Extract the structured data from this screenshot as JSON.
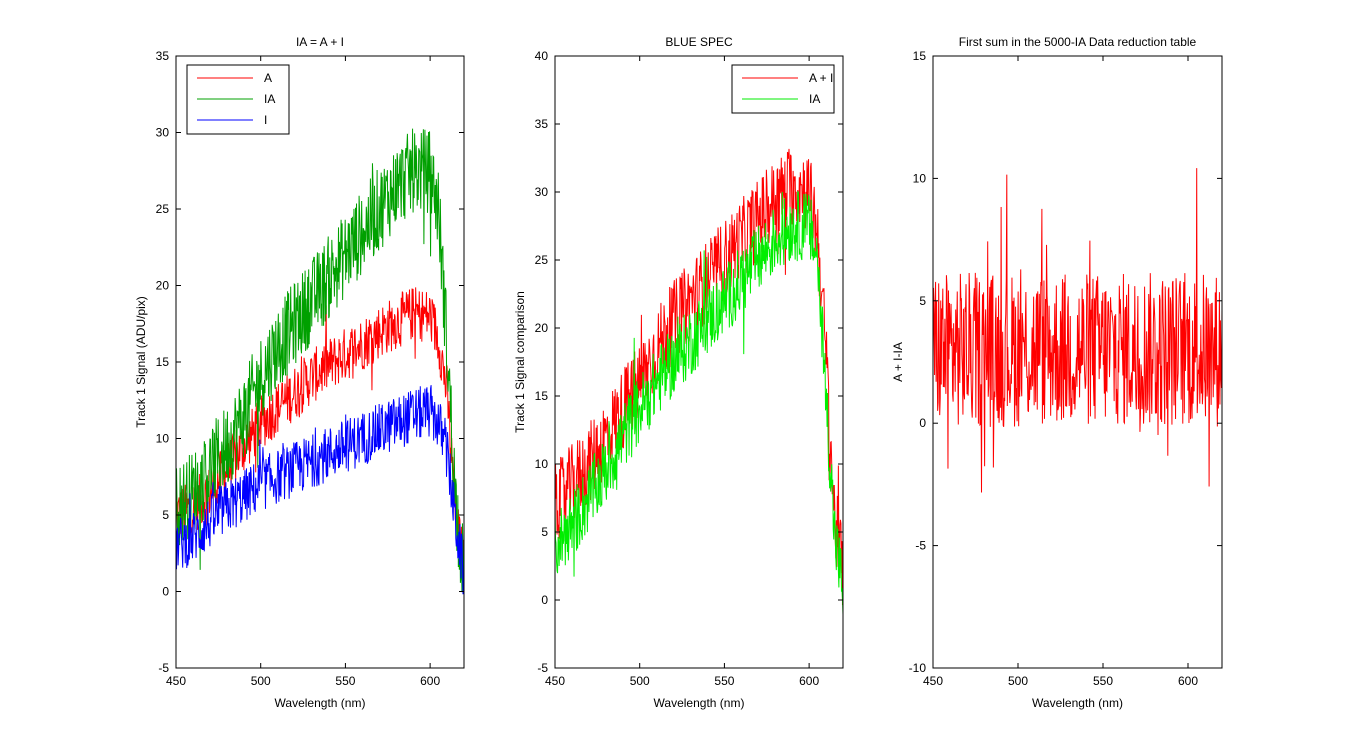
{
  "chart_data": [
    {
      "type": "line",
      "title": "IA = A + I",
      "xlabel": "Wavelength (nm)",
      "ylabel": "Track 1 Signal (ADU/pix)",
      "xlim": [
        450,
        620
      ],
      "ylim": [
        -5,
        35
      ],
      "xticks": [
        450,
        500,
        550,
        600
      ],
      "yticks": [
        -5,
        0,
        5,
        10,
        15,
        20,
        25,
        30,
        35
      ],
      "legend_position": "top-left",
      "noise_amplitude": [
        1.8,
        2.8,
        1.8
      ],
      "series": [
        {
          "name": "A",
          "color": "#ff0000",
          "x": [
            450,
            460,
            470,
            480,
            490,
            500,
            510,
            520,
            530,
            540,
            550,
            560,
            570,
            580,
            590,
            600,
            605,
            610,
            615,
            620
          ],
          "y": [
            5.0,
            5.5,
            6.5,
            8.0,
            9.5,
            11.0,
            12.0,
            13.0,
            14.0,
            14.8,
            15.5,
            16.2,
            17.0,
            17.6,
            18.2,
            18.0,
            16.5,
            13.0,
            5.0,
            1.5
          ]
        },
        {
          "name": "IA",
          "color": "#00a000",
          "x": [
            450,
            460,
            470,
            480,
            490,
            500,
            510,
            520,
            530,
            540,
            550,
            560,
            570,
            580,
            590,
            600,
            605,
            610,
            615,
            620
          ],
          "y": [
            5.5,
            6.5,
            8.0,
            9.5,
            11.5,
            14.0,
            16.0,
            17.5,
            19.0,
            20.5,
            22.0,
            23.5,
            25.0,
            26.5,
            27.5,
            27.5,
            25.0,
            16.0,
            6.0,
            1.0
          ]
        },
        {
          "name": "I",
          "color": "#0000ff",
          "x": [
            450,
            460,
            470,
            480,
            490,
            500,
            510,
            520,
            530,
            540,
            550,
            560,
            570,
            580,
            590,
            600,
            605,
            610,
            615,
            620
          ],
          "y": [
            3.0,
            3.5,
            4.5,
            5.5,
            6.2,
            7.0,
            7.5,
            8.0,
            8.5,
            9.0,
            9.5,
            10.0,
            10.5,
            11.0,
            11.5,
            11.8,
            11.0,
            9.0,
            4.5,
            1.0
          ]
        }
      ]
    },
    {
      "type": "line",
      "title": "BLUE SPEC",
      "xlabel": "Wavelength (nm)",
      "ylabel": "Track 1 Signal comparison",
      "xlim": [
        450,
        620
      ],
      "ylim": [
        -5,
        40
      ],
      "xticks": [
        450,
        500,
        550,
        600
      ],
      "yticks": [
        -5,
        0,
        5,
        10,
        15,
        20,
        25,
        30,
        35,
        40
      ],
      "legend_position": "top-right",
      "noise_amplitude": [
        3.0,
        2.6
      ],
      "series": [
        {
          "name": "A + I",
          "color": "#ff0000",
          "x": [
            450,
            460,
            470,
            480,
            490,
            500,
            510,
            520,
            530,
            540,
            550,
            560,
            570,
            580,
            590,
            600,
            605,
            610,
            615,
            620
          ],
          "y": [
            7.0,
            8.5,
            10.0,
            12.0,
            14.0,
            16.0,
            18.5,
            20.5,
            22.0,
            23.5,
            25.0,
            26.5,
            28.0,
            29.5,
            30.5,
            30.0,
            27.0,
            18.0,
            6.0,
            2.0
          ]
        },
        {
          "name": "IA",
          "color": "#00ee00",
          "x": [
            450,
            460,
            470,
            480,
            490,
            500,
            510,
            520,
            530,
            540,
            550,
            560,
            570,
            580,
            590,
            600,
            605,
            610,
            615,
            620
          ],
          "y": [
            4.0,
            5.5,
            7.5,
            9.5,
            12.0,
            14.0,
            16.0,
            17.5,
            19.0,
            20.5,
            22.0,
            23.5,
            25.0,
            26.5,
            27.5,
            27.5,
            25.0,
            15.0,
            5.0,
            0.5
          ]
        }
      ]
    },
    {
      "type": "line",
      "title": "First sum in the 5000-IA Data reduction table",
      "xlabel": "Wavelength (nm)",
      "ylabel": "A + I-IA",
      "xlim": [
        450,
        620
      ],
      "ylim": [
        -10,
        15
      ],
      "xticks": [
        450,
        500,
        550,
        600
      ],
      "yticks": [
        -10,
        -5,
        0,
        5,
        10,
        15
      ],
      "noise_amplitude": [
        3.2
      ],
      "series": [
        {
          "color": "#ff0000",
          "x": [
            450,
            500,
            550,
            600,
            620
          ],
          "y": [
            3.0,
            3.0,
            3.0,
            3.0,
            3.0
          ]
        }
      ]
    }
  ]
}
